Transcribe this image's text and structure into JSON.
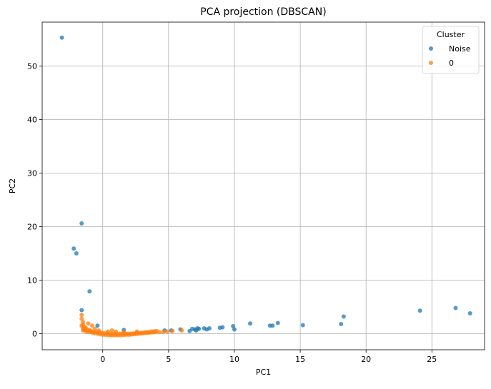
{
  "chart_data": {
    "type": "scatter",
    "title": "PCA projection (DBSCAN)",
    "xlabel": "PC1",
    "ylabel": "PC2",
    "xlim": [
      -4.6,
      29.0
    ],
    "ylim": [
      -3.0,
      58.2
    ],
    "xticks": [
      0,
      5,
      10,
      15,
      20,
      25
    ],
    "yticks": [
      0,
      10,
      20,
      30,
      40,
      50
    ],
    "grid": true,
    "legend": {
      "title": "Cluster",
      "placement": "top-right"
    },
    "series": [
      {
        "name": "Noise",
        "color": "#1f77b4",
        "points": [
          [
            -3.1,
            55.3
          ],
          [
            -1.6,
            20.6
          ],
          [
            -2.2,
            15.9
          ],
          [
            -2.0,
            15.0
          ],
          [
            -1.0,
            7.9
          ],
          [
            -1.6,
            4.4
          ],
          [
            -0.4,
            1.5
          ],
          [
            1.6,
            0.7
          ],
          [
            4.7,
            0.6
          ],
          [
            5.2,
            0.6
          ],
          [
            5.9,
            0.8
          ],
          [
            6.6,
            0.5
          ],
          [
            6.8,
            0.9
          ],
          [
            7.0,
            0.8
          ],
          [
            7.1,
            0.6
          ],
          [
            7.2,
            1.0
          ],
          [
            7.3,
            0.9
          ],
          [
            7.7,
            1.0
          ],
          [
            7.9,
            0.8
          ],
          [
            8.1,
            1.0
          ],
          [
            8.9,
            1.1
          ],
          [
            9.1,
            1.2
          ],
          [
            9.9,
            1.4
          ],
          [
            10.0,
            0.8
          ],
          [
            11.2,
            1.9
          ],
          [
            12.7,
            1.5
          ],
          [
            12.9,
            1.5
          ],
          [
            13.3,
            2.0
          ],
          [
            15.2,
            1.6
          ],
          [
            18.1,
            1.8
          ],
          [
            18.3,
            3.2
          ],
          [
            24.1,
            4.3
          ],
          [
            26.8,
            4.8
          ],
          [
            27.9,
            3.8
          ]
        ]
      },
      {
        "name": "0",
        "color": "#ff7f0e",
        "points": [
          [
            -1.6,
            3.5
          ],
          [
            -1.6,
            2.8
          ],
          [
            -1.5,
            2.2
          ],
          [
            -1.5,
            1.7
          ],
          [
            -1.4,
            1.3
          ],
          [
            -1.5,
            1.0
          ],
          [
            -1.4,
            0.8
          ],
          [
            -1.5,
            0.6
          ],
          [
            -1.3,
            0.5
          ],
          [
            -1.2,
            0.4
          ],
          [
            -1.0,
            0.3
          ],
          [
            -0.8,
            0.2
          ],
          [
            -0.6,
            0.1
          ],
          [
            -0.4,
            0.0
          ],
          [
            -0.2,
            -0.1
          ],
          [
            0.0,
            -0.2
          ],
          [
            0.2,
            -0.2
          ],
          [
            0.4,
            -0.25
          ],
          [
            0.6,
            -0.3
          ],
          [
            0.8,
            -0.3
          ],
          [
            1.0,
            -0.3
          ],
          [
            1.2,
            -0.3
          ],
          [
            1.4,
            -0.3
          ],
          [
            1.6,
            -0.25
          ],
          [
            1.8,
            -0.2
          ],
          [
            2.0,
            -0.2
          ],
          [
            2.2,
            -0.15
          ],
          [
            2.4,
            -0.1
          ],
          [
            2.6,
            -0.05
          ],
          [
            2.8,
            0.0
          ],
          [
            3.0,
            0.05
          ],
          [
            3.2,
            0.1
          ],
          [
            3.4,
            0.15
          ],
          [
            3.6,
            0.2
          ],
          [
            3.8,
            0.25
          ],
          [
            4.0,
            0.3
          ],
          [
            4.3,
            0.3
          ],
          [
            4.6,
            0.35
          ],
          [
            4.9,
            0.4
          ],
          [
            5.3,
            0.5
          ],
          [
            -1.6,
            1.5
          ],
          [
            -1.3,
            1.1
          ],
          [
            -1.2,
            0.8
          ],
          [
            -1.0,
            0.7
          ],
          [
            -0.9,
            0.5
          ],
          [
            -0.7,
            0.4
          ],
          [
            -0.5,
            0.3
          ],
          [
            -0.3,
            0.2
          ],
          [
            -0.1,
            0.2
          ],
          [
            0.1,
            0.1
          ],
          [
            0.3,
            0.1
          ],
          [
            0.5,
            0.0
          ],
          [
            0.7,
            0.0
          ],
          [
            0.9,
            0.0
          ],
          [
            1.1,
            -0.1
          ],
          [
            1.3,
            0.0
          ],
          [
            1.5,
            0.0
          ],
          [
            1.7,
            0.0
          ],
          [
            1.9,
            0.0
          ],
          [
            2.1,
            0.0
          ],
          [
            2.3,
            0.05
          ],
          [
            2.5,
            0.1
          ],
          [
            2.7,
            0.1
          ],
          [
            2.9,
            0.2
          ],
          [
            3.1,
            0.2
          ],
          [
            3.3,
            0.3
          ],
          [
            3.5,
            0.3
          ],
          [
            3.7,
            0.4
          ],
          [
            3.9,
            0.45
          ],
          [
            4.1,
            0.5
          ],
          [
            -0.8,
            1.5
          ],
          [
            -0.3,
            0.6
          ],
          [
            0.4,
            0.4
          ],
          [
            1.0,
            0.4
          ],
          [
            1.6,
            0.3
          ],
          [
            0.7,
            0.6
          ],
          [
            2.6,
            0.4
          ],
          [
            -1.1,
            1.9
          ],
          [
            -0.6,
            0.9
          ],
          [
            6.0,
            0.6
          ]
        ]
      }
    ]
  }
}
